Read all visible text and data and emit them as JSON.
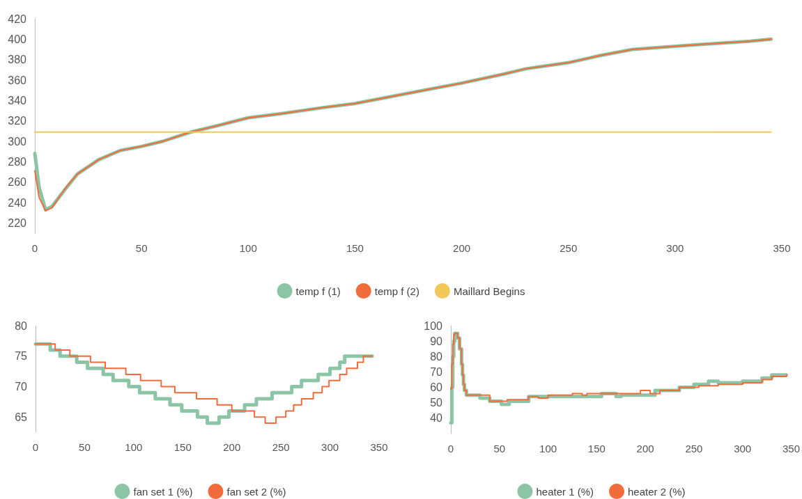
{
  "chart_data": [
    {
      "type": "line",
      "xlim": [
        0,
        350
      ],
      "xticks": [
        0,
        50,
        100,
        150,
        200,
        250,
        300,
        350
      ],
      "ylim": [
        210,
        420
      ],
      "yticks": [
        220,
        240,
        260,
        280,
        300,
        320,
        340,
        360,
        380,
        400,
        420
      ],
      "grid": false,
      "legend": "bottom",
      "marker": "none",
      "line_style": "solid",
      "series": [
        {
          "name": "temp f (1)",
          "color": "#8cc5a6",
          "x": [
            0,
            2,
            5,
            8,
            12,
            15,
            20,
            30,
            40,
            50,
            60,
            73,
            85,
            100,
            115,
            135,
            150,
            175,
            200,
            220,
            230,
            250,
            265,
            280,
            300,
            320,
            335,
            345
          ],
          "values": [
            288,
            255,
            233,
            236,
            247,
            255,
            268,
            282,
            291,
            295,
            300,
            309,
            315,
            323,
            327,
            333,
            337,
            347,
            357,
            366,
            371,
            377,
            384,
            390,
            393,
            396,
            398,
            400
          ]
        },
        {
          "name": "temp f (2)",
          "color": "#f26b3a",
          "x": [
            0,
            2,
            5,
            8,
            12,
            15,
            20,
            30,
            40,
            50,
            60,
            73,
            85,
            100,
            115,
            135,
            150,
            175,
            200,
            220,
            230,
            250,
            265,
            280,
            300,
            320,
            335,
            345
          ],
          "values": [
            271,
            245,
            232,
            235,
            247,
            256,
            268,
            282,
            291,
            295,
            300,
            309,
            315,
            323,
            327,
            333,
            337,
            347,
            357,
            366,
            371,
            377,
            384,
            390,
            393,
            396,
            398,
            400
          ]
        },
        {
          "name": "Maillard Begins",
          "color": "#f2c85b",
          "x": [
            0,
            345
          ],
          "values": [
            309,
            309
          ]
        }
      ]
    },
    {
      "type": "step",
      "xlim": [
        0,
        350
      ],
      "xticks": [
        0,
        50,
        100,
        150,
        200,
        250,
        300,
        350
      ],
      "ylim": [
        62.5,
        80
      ],
      "yticks": [
        65,
        70,
        75,
        80
      ],
      "grid": false,
      "legend": "bottom",
      "marker": "none",
      "line_style": "solid",
      "series": [
        {
          "name": "fan set 1 (%)",
          "color": "#8cc5a6",
          "x": [
            0,
            15,
            25,
            42,
            53,
            69,
            79,
            95,
            106,
            122,
            137,
            149,
            165,
            175,
            187,
            197,
            213,
            225,
            241,
            261,
            271,
            288,
            300,
            310,
            315,
            343
          ],
          "values": [
            77,
            76,
            75,
            74,
            73,
            72,
            71,
            70,
            69,
            68,
            67,
            66,
            65,
            64,
            65,
            66,
            67,
            68,
            69,
            70,
            71,
            72,
            73,
            74,
            75,
            75
          ]
        },
        {
          "name": "fan set 2 (%)",
          "color": "#f26b3a",
          "x": [
            0,
            20,
            35,
            56,
            71,
            92,
            107,
            128,
            142,
            164,
            185,
            200,
            223,
            234,
            245,
            255,
            263,
            271,
            283,
            292,
            299,
            310,
            317,
            328,
            334,
            343
          ],
          "values": [
            77,
            76,
            75,
            74,
            73,
            72,
            71,
            70,
            69,
            68,
            67,
            66,
            65,
            64,
            65,
            66,
            67,
            68,
            69,
            70,
            71,
            72,
            73,
            74,
            75,
            75
          ]
        }
      ]
    },
    {
      "type": "step",
      "xlim": [
        0,
        350
      ],
      "xticks": [
        0,
        50,
        100,
        150,
        200,
        250,
        300,
        350
      ],
      "ylim": [
        30,
        100
      ],
      "yticks": [
        40,
        50,
        60,
        70,
        80,
        90,
        100
      ],
      "grid": false,
      "legend": "bottom",
      "marker": "none",
      "line_style": "solid",
      "series": [
        {
          "name": "heater 1 (%)",
          "color": "#8cc5a6",
          "x": [
            0,
            1,
            2,
            3,
            4,
            7,
            9,
            11,
            12,
            13,
            14,
            16,
            30,
            40,
            52,
            60,
            80,
            115,
            155,
            170,
            175,
            210,
            235,
            250,
            265,
            275,
            300,
            320,
            330,
            345
          ],
          "values": [
            37,
            60,
            80,
            90,
            95,
            92,
            85,
            75,
            68,
            62,
            58,
            55,
            53,
            51,
            49,
            51,
            54,
            54,
            56,
            54,
            55,
            58,
            60,
            62,
            64,
            63,
            64,
            66,
            68,
            68
          ]
        },
        {
          "name": "heater 2 (%)",
          "color": "#f26b3a",
          "x": [
            0,
            1,
            2,
            3,
            4,
            7,
            9,
            11,
            12,
            13,
            14,
            16,
            30,
            40,
            58,
            80,
            90,
            100,
            125,
            135,
            140,
            195,
            205,
            215,
            235,
            255,
            275,
            300,
            320,
            330,
            345
          ],
          "values": [
            59,
            75,
            88,
            94,
            95,
            92,
            85,
            75,
            68,
            62,
            58,
            55,
            55,
            51,
            52,
            54,
            53,
            55,
            56,
            55,
            56,
            58,
            56,
            58,
            60,
            61,
            62,
            63,
            65,
            67,
            68
          ]
        }
      ]
    }
  ]
}
